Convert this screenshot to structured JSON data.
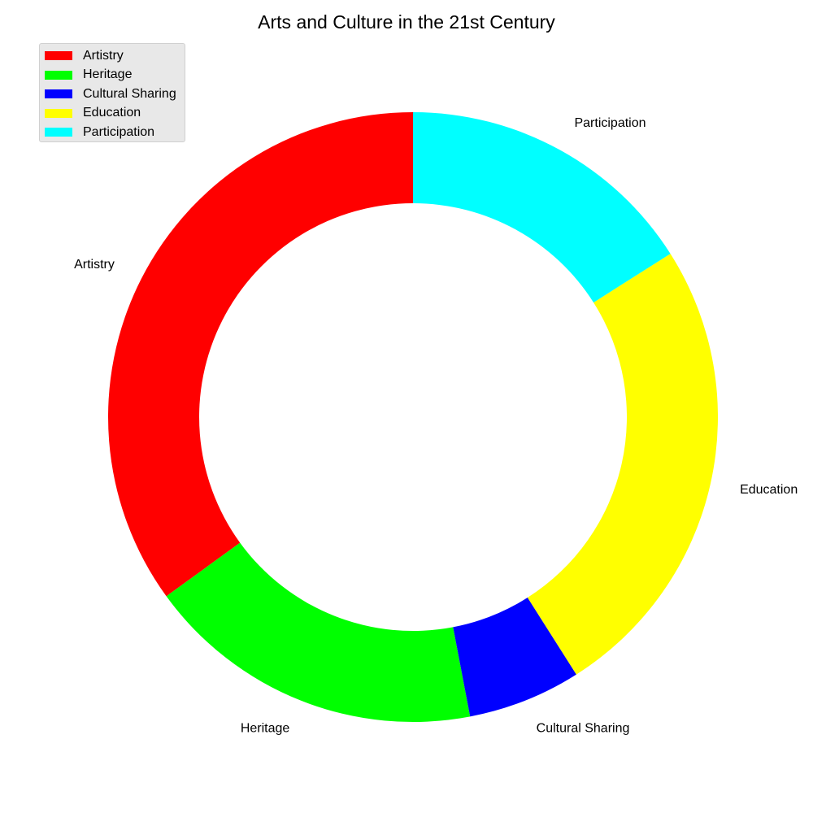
{
  "chart_data": {
    "type": "pie",
    "variant": "donut",
    "title": "Arts and Culture in the 21st Century",
    "categories": [
      "Artistry",
      "Heritage",
      "Cultural Sharing",
      "Education",
      "Participation"
    ],
    "values": [
      35,
      18,
      6,
      25,
      16
    ],
    "colors": [
      "#ff0000",
      "#00ff00",
      "#0000ff",
      "#ffff00",
      "#00ffff"
    ],
    "start_angle": 90,
    "direction": "counterclockwise",
    "legend": {
      "position": "top-left",
      "entries": [
        "Artistry",
        "Heritage",
        "Cultural Sharing",
        "Education",
        "Participation"
      ]
    }
  }
}
